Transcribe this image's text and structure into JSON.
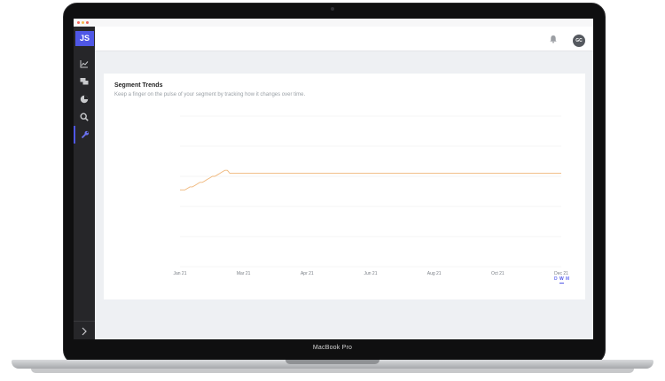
{
  "device": {
    "label": "MacBook Pro"
  },
  "app": {
    "logo": "JS"
  },
  "sidebar": {
    "items": [
      {
        "icon": "line-chart-icon"
      },
      {
        "icon": "chat-bubbles-icon"
      },
      {
        "icon": "pie-chart-icon"
      },
      {
        "icon": "search-icon"
      },
      {
        "icon": "wrench-icon",
        "active": true
      }
    ],
    "expand_icon": "chevron-right-icon"
  },
  "header": {
    "bell_icon": "bell-icon",
    "avatar_initials": "GC"
  },
  "card": {
    "title": "Segment Trends",
    "subtitle": "Keep a finger on the pulse of your segment by tracking how it changes over time."
  },
  "legend": [
    {
      "label": "D",
      "color": "#4f57e6"
    },
    {
      "label": "W",
      "color": "#4f57e6"
    },
    {
      "label": "M",
      "color": "#4f57e6"
    }
  ],
  "colors": {
    "accent": "#4f57e6",
    "grid": "#e9eaec"
  },
  "chart_data": {
    "type": "line",
    "x_ticks": [
      "Jan 21",
      "Mar 21",
      "Apr 21",
      "Jun 21",
      "Aug 21",
      "Oct 21",
      "Dec 21"
    ],
    "ylim": [
      0,
      100
    ],
    "y_grid_count": 5,
    "series": [
      {
        "color": "#efb679",
        "values": [
          51,
          51,
          51,
          52,
          53,
          53,
          54,
          55,
          56,
          56,
          57,
          58,
          59,
          60,
          60,
          61,
          62,
          63,
          64,
          64,
          62,
          62,
          62,
          62,
          62,
          62,
          62,
          62,
          62,
          62,
          62,
          62,
          62,
          62,
          62,
          62,
          62,
          62,
          62,
          62,
          62,
          62,
          62,
          62,
          62,
          62,
          62,
          62,
          62,
          62,
          62,
          62,
          62,
          62,
          62,
          62,
          62,
          62,
          62,
          62,
          62,
          62,
          62,
          62,
          62,
          62,
          62,
          62,
          62,
          62,
          62,
          62,
          62,
          62,
          62,
          62,
          62,
          62,
          62,
          62,
          62,
          62,
          62,
          62,
          62,
          62,
          62,
          62,
          62,
          62,
          62,
          62,
          62,
          62,
          62,
          62,
          62,
          62,
          62,
          62,
          62,
          62,
          62,
          62,
          62,
          62,
          62,
          62,
          62,
          62,
          62,
          62,
          62,
          62,
          62,
          62,
          62,
          62,
          62,
          62,
          62,
          62,
          62,
          62,
          62,
          62,
          62,
          62,
          62,
          62,
          62,
          62,
          62,
          62,
          62,
          62,
          62,
          62,
          62,
          62,
          62,
          62,
          62,
          62,
          62,
          62,
          62,
          62,
          62,
          62,
          62,
          62,
          62,
          62
        ]
      }
    ]
  }
}
